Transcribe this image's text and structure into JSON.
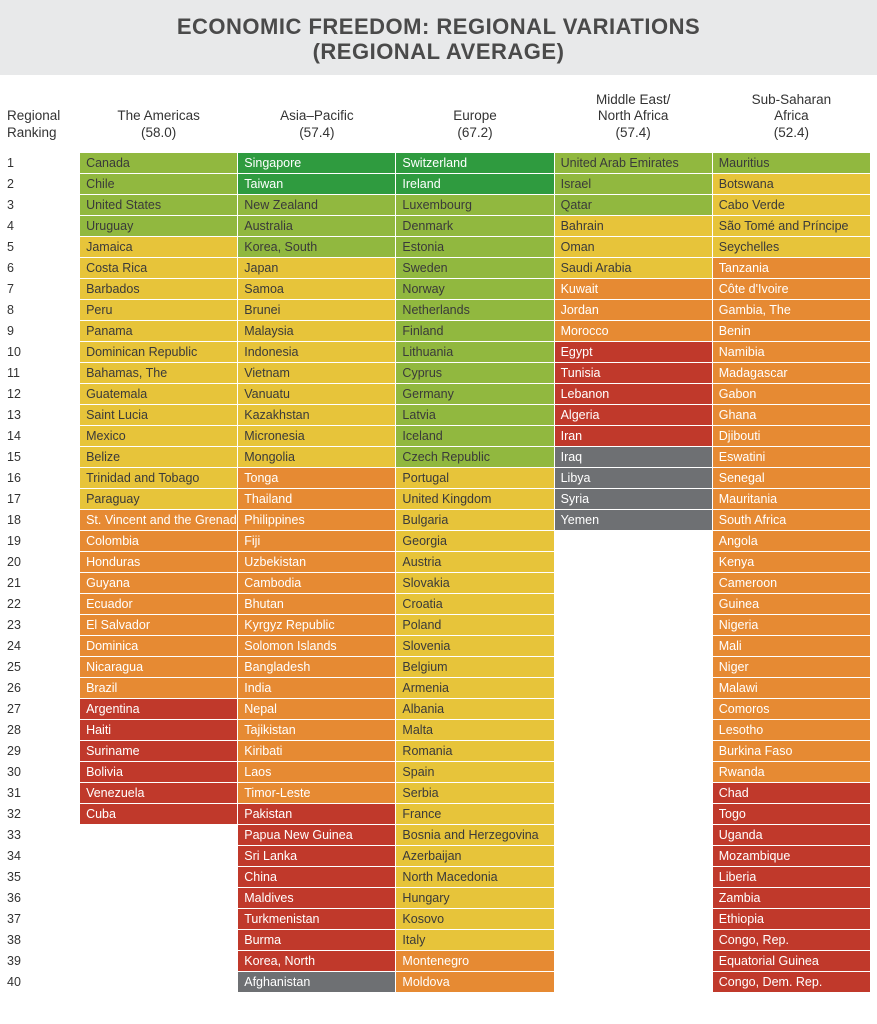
{
  "title_line1": "ECONOMIC FREEDOM: REGIONAL VARIATIONS",
  "title_line2": "(REGIONAL AVERAGE)",
  "rank_header": "Regional\nRanking",
  "colors": {
    "dark_green": "#2f9b3f",
    "green": "#91b83f",
    "yellow": "#e7c43a",
    "orange": "#e68a33",
    "red": "#c0392b",
    "gray": "#6e7073",
    "header_bg": "#e8e9ea",
    "text_dark": "#3a3a3a",
    "text_light": "#ffffff"
  },
  "regions": [
    {
      "name": "The Americas",
      "avg": "(58.0)"
    },
    {
      "name": "Asia–Pacific",
      "avg": "(57.4)"
    },
    {
      "name": "Europe",
      "avg": "(67.2)"
    },
    {
      "name": "Middle East/\nNorth Africa",
      "avg": "(57.4)"
    },
    {
      "name": "Sub-Saharan\nAfrica",
      "avg": "(52.4)"
    }
  ],
  "row_count": 40,
  "rows": [
    [
      {
        "t": "Canada",
        "c": "green",
        "d": true
      },
      {
        "t": "Singapore",
        "c": "dark_green"
      },
      {
        "t": "Switzerland",
        "c": "dark_green"
      },
      {
        "t": "United Arab Emirates",
        "c": "green",
        "d": true
      },
      {
        "t": "Mauritius",
        "c": "green",
        "d": true
      }
    ],
    [
      {
        "t": "Chile",
        "c": "green",
        "d": true
      },
      {
        "t": "Taiwan",
        "c": "dark_green"
      },
      {
        "t": "Ireland",
        "c": "dark_green"
      },
      {
        "t": "Israel",
        "c": "green",
        "d": true
      },
      {
        "t": "Botswana",
        "c": "yellow",
        "d": true
      }
    ],
    [
      {
        "t": "United States",
        "c": "green",
        "d": true
      },
      {
        "t": "New Zealand",
        "c": "green",
        "d": true
      },
      {
        "t": "Luxembourg",
        "c": "green",
        "d": true
      },
      {
        "t": "Qatar",
        "c": "green",
        "d": true
      },
      {
        "t": "Cabo Verde",
        "c": "yellow",
        "d": true
      }
    ],
    [
      {
        "t": "Uruguay",
        "c": "green",
        "d": true
      },
      {
        "t": "Australia",
        "c": "green",
        "d": true
      },
      {
        "t": "Denmark",
        "c": "green",
        "d": true
      },
      {
        "t": "Bahrain",
        "c": "yellow",
        "d": true
      },
      {
        "t": "São Tomé and Príncipe",
        "c": "yellow",
        "d": true
      }
    ],
    [
      {
        "t": "Jamaica",
        "c": "yellow",
        "d": true
      },
      {
        "t": "Korea, South",
        "c": "green",
        "d": true
      },
      {
        "t": "Estonia",
        "c": "green",
        "d": true
      },
      {
        "t": "Oman",
        "c": "yellow",
        "d": true
      },
      {
        "t": "Seychelles",
        "c": "yellow",
        "d": true
      }
    ],
    [
      {
        "t": "Costa Rica",
        "c": "yellow",
        "d": true
      },
      {
        "t": "Japan",
        "c": "yellow",
        "d": true
      },
      {
        "t": "Sweden",
        "c": "green",
        "d": true
      },
      {
        "t": "Saudi Arabia",
        "c": "yellow",
        "d": true
      },
      {
        "t": "Tanzania",
        "c": "orange"
      }
    ],
    [
      {
        "t": "Barbados",
        "c": "yellow",
        "d": true
      },
      {
        "t": "Samoa",
        "c": "yellow",
        "d": true
      },
      {
        "t": "Norway",
        "c": "green",
        "d": true
      },
      {
        "t": "Kuwait",
        "c": "orange"
      },
      {
        "t": "Côte d'Ivoire",
        "c": "orange"
      }
    ],
    [
      {
        "t": "Peru",
        "c": "yellow",
        "d": true
      },
      {
        "t": "Brunei",
        "c": "yellow",
        "d": true
      },
      {
        "t": "Netherlands",
        "c": "green",
        "d": true
      },
      {
        "t": "Jordan",
        "c": "orange"
      },
      {
        "t": "Gambia, The",
        "c": "orange"
      }
    ],
    [
      {
        "t": "Panama",
        "c": "yellow",
        "d": true
      },
      {
        "t": "Malaysia",
        "c": "yellow",
        "d": true
      },
      {
        "t": "Finland",
        "c": "green",
        "d": true
      },
      {
        "t": "Morocco",
        "c": "orange"
      },
      {
        "t": "Benin",
        "c": "orange"
      }
    ],
    [
      {
        "t": "Dominican Republic",
        "c": "yellow",
        "d": true
      },
      {
        "t": "Indonesia",
        "c": "yellow",
        "d": true
      },
      {
        "t": "Lithuania",
        "c": "green",
        "d": true
      },
      {
        "t": "Egypt",
        "c": "red"
      },
      {
        "t": "Namibia",
        "c": "orange"
      }
    ],
    [
      {
        "t": "Bahamas, The",
        "c": "yellow",
        "d": true
      },
      {
        "t": "Vietnam",
        "c": "yellow",
        "d": true
      },
      {
        "t": "Cyprus",
        "c": "green",
        "d": true
      },
      {
        "t": "Tunisia",
        "c": "red"
      },
      {
        "t": "Madagascar",
        "c": "orange"
      }
    ],
    [
      {
        "t": "Guatemala",
        "c": "yellow",
        "d": true
      },
      {
        "t": "Vanuatu",
        "c": "yellow",
        "d": true
      },
      {
        "t": "Germany",
        "c": "green",
        "d": true
      },
      {
        "t": "Lebanon",
        "c": "red"
      },
      {
        "t": "Gabon",
        "c": "orange"
      }
    ],
    [
      {
        "t": "Saint Lucia",
        "c": "yellow",
        "d": true
      },
      {
        "t": "Kazakhstan",
        "c": "yellow",
        "d": true
      },
      {
        "t": "Latvia",
        "c": "green",
        "d": true
      },
      {
        "t": "Algeria",
        "c": "red"
      },
      {
        "t": "Ghana",
        "c": "orange"
      }
    ],
    [
      {
        "t": "Mexico",
        "c": "yellow",
        "d": true
      },
      {
        "t": "Micronesia",
        "c": "yellow",
        "d": true
      },
      {
        "t": "Iceland",
        "c": "green",
        "d": true
      },
      {
        "t": "Iran",
        "c": "red"
      },
      {
        "t": "Djibouti",
        "c": "orange"
      }
    ],
    [
      {
        "t": "Belize",
        "c": "yellow",
        "d": true
      },
      {
        "t": "Mongolia",
        "c": "yellow",
        "d": true
      },
      {
        "t": "Czech Republic",
        "c": "green",
        "d": true
      },
      {
        "t": "Iraq",
        "c": "gray"
      },
      {
        "t": "Eswatini",
        "c": "orange"
      }
    ],
    [
      {
        "t": "Trinidad and Tobago",
        "c": "yellow",
        "d": true
      },
      {
        "t": "Tonga",
        "c": "orange"
      },
      {
        "t": "Portugal",
        "c": "yellow",
        "d": true
      },
      {
        "t": "Libya",
        "c": "gray"
      },
      {
        "t": "Senegal",
        "c": "orange"
      }
    ],
    [
      {
        "t": "Paraguay",
        "c": "yellow",
        "d": true
      },
      {
        "t": "Thailand",
        "c": "orange"
      },
      {
        "t": "United Kingdom",
        "c": "yellow",
        "d": true
      },
      {
        "t": "Syria",
        "c": "gray"
      },
      {
        "t": "Mauritania",
        "c": "orange"
      }
    ],
    [
      {
        "t": "St. Vincent and the Grenadines",
        "c": "orange"
      },
      {
        "t": "Philippines",
        "c": "orange"
      },
      {
        "t": "Bulgaria",
        "c": "yellow",
        "d": true
      },
      {
        "t": "Yemen",
        "c": "gray"
      },
      {
        "t": "South Africa",
        "c": "orange"
      }
    ],
    [
      {
        "t": "Colombia",
        "c": "orange"
      },
      {
        "t": "Fiji",
        "c": "orange"
      },
      {
        "t": "Georgia",
        "c": "yellow",
        "d": true
      },
      null,
      {
        "t": "Angola",
        "c": "orange"
      }
    ],
    [
      {
        "t": "Honduras",
        "c": "orange"
      },
      {
        "t": "Uzbekistan",
        "c": "orange"
      },
      {
        "t": "Austria",
        "c": "yellow",
        "d": true
      },
      null,
      {
        "t": "Kenya",
        "c": "orange"
      }
    ],
    [
      {
        "t": "Guyana",
        "c": "orange"
      },
      {
        "t": "Cambodia",
        "c": "orange"
      },
      {
        "t": "Slovakia",
        "c": "yellow",
        "d": true
      },
      null,
      {
        "t": "Cameroon",
        "c": "orange"
      }
    ],
    [
      {
        "t": "Ecuador",
        "c": "orange"
      },
      {
        "t": "Bhutan",
        "c": "orange"
      },
      {
        "t": "Croatia",
        "c": "yellow",
        "d": true
      },
      null,
      {
        "t": "Guinea",
        "c": "orange"
      }
    ],
    [
      {
        "t": "El Salvador",
        "c": "orange"
      },
      {
        "t": "Kyrgyz Republic",
        "c": "orange"
      },
      {
        "t": "Poland",
        "c": "yellow",
        "d": true
      },
      null,
      {
        "t": "Nigeria",
        "c": "orange"
      }
    ],
    [
      {
        "t": "Dominica",
        "c": "orange"
      },
      {
        "t": "Solomon Islands",
        "c": "orange"
      },
      {
        "t": "Slovenia",
        "c": "yellow",
        "d": true
      },
      null,
      {
        "t": "Mali",
        "c": "orange"
      }
    ],
    [
      {
        "t": "Nicaragua",
        "c": "orange"
      },
      {
        "t": "Bangladesh",
        "c": "orange"
      },
      {
        "t": "Belgium",
        "c": "yellow",
        "d": true
      },
      null,
      {
        "t": "Niger",
        "c": "orange"
      }
    ],
    [
      {
        "t": "Brazil",
        "c": "orange"
      },
      {
        "t": "India",
        "c": "orange"
      },
      {
        "t": "Armenia",
        "c": "yellow",
        "d": true
      },
      null,
      {
        "t": "Malawi",
        "c": "orange"
      }
    ],
    [
      {
        "t": "Argentina",
        "c": "red"
      },
      {
        "t": "Nepal",
        "c": "orange"
      },
      {
        "t": "Albania",
        "c": "yellow",
        "d": true
      },
      null,
      {
        "t": "Comoros",
        "c": "orange"
      }
    ],
    [
      {
        "t": "Haiti",
        "c": "red"
      },
      {
        "t": "Tajikistan",
        "c": "orange"
      },
      {
        "t": "Malta",
        "c": "yellow",
        "d": true
      },
      null,
      {
        "t": "Lesotho",
        "c": "orange"
      }
    ],
    [
      {
        "t": "Suriname",
        "c": "red"
      },
      {
        "t": "Kiribati",
        "c": "orange"
      },
      {
        "t": "Romania",
        "c": "yellow",
        "d": true
      },
      null,
      {
        "t": "Burkina Faso",
        "c": "orange"
      }
    ],
    [
      {
        "t": "Bolivia",
        "c": "red"
      },
      {
        "t": "Laos",
        "c": "orange"
      },
      {
        "t": "Spain",
        "c": "yellow",
        "d": true
      },
      null,
      {
        "t": "Rwanda",
        "c": "orange"
      }
    ],
    [
      {
        "t": "Venezuela",
        "c": "red"
      },
      {
        "t": "Timor-Leste",
        "c": "orange"
      },
      {
        "t": "Serbia",
        "c": "yellow",
        "d": true
      },
      null,
      {
        "t": "Chad",
        "c": "red"
      }
    ],
    [
      {
        "t": "Cuba",
        "c": "red"
      },
      {
        "t": "Pakistan",
        "c": "red"
      },
      {
        "t": "France",
        "c": "yellow",
        "d": true
      },
      null,
      {
        "t": "Togo",
        "c": "red"
      }
    ],
    [
      null,
      {
        "t": "Papua New Guinea",
        "c": "red"
      },
      {
        "t": "Bosnia and Herzegovina",
        "c": "yellow",
        "d": true
      },
      null,
      {
        "t": "Uganda",
        "c": "red"
      }
    ],
    [
      null,
      {
        "t": "Sri Lanka",
        "c": "red"
      },
      {
        "t": "Azerbaijan",
        "c": "yellow",
        "d": true
      },
      null,
      {
        "t": "Mozambique",
        "c": "red"
      }
    ],
    [
      null,
      {
        "t": "China",
        "c": "red"
      },
      {
        "t": "North Macedonia",
        "c": "yellow",
        "d": true
      },
      null,
      {
        "t": "Liberia",
        "c": "red"
      }
    ],
    [
      null,
      {
        "t": "Maldives",
        "c": "red"
      },
      {
        "t": "Hungary",
        "c": "yellow",
        "d": true
      },
      null,
      {
        "t": "Zambia",
        "c": "red"
      }
    ],
    [
      null,
      {
        "t": "Turkmenistan",
        "c": "red"
      },
      {
        "t": "Kosovo",
        "c": "yellow",
        "d": true
      },
      null,
      {
        "t": "Ethiopia",
        "c": "red"
      }
    ],
    [
      null,
      {
        "t": "Burma",
        "c": "red"
      },
      {
        "t": "Italy",
        "c": "yellow",
        "d": true
      },
      null,
      {
        "t": "Congo, Rep.",
        "c": "red"
      }
    ],
    [
      null,
      {
        "t": "Korea, North",
        "c": "red"
      },
      {
        "t": "Montenegro",
        "c": "orange"
      },
      null,
      {
        "t": "Equatorial Guinea",
        "c": "red"
      }
    ],
    [
      null,
      {
        "t": "Afghanistan",
        "c": "gray"
      },
      {
        "t": "Moldova",
        "c": "orange"
      },
      null,
      {
        "t": "Congo, Dem. Rep.",
        "c": "red"
      }
    ]
  ]
}
